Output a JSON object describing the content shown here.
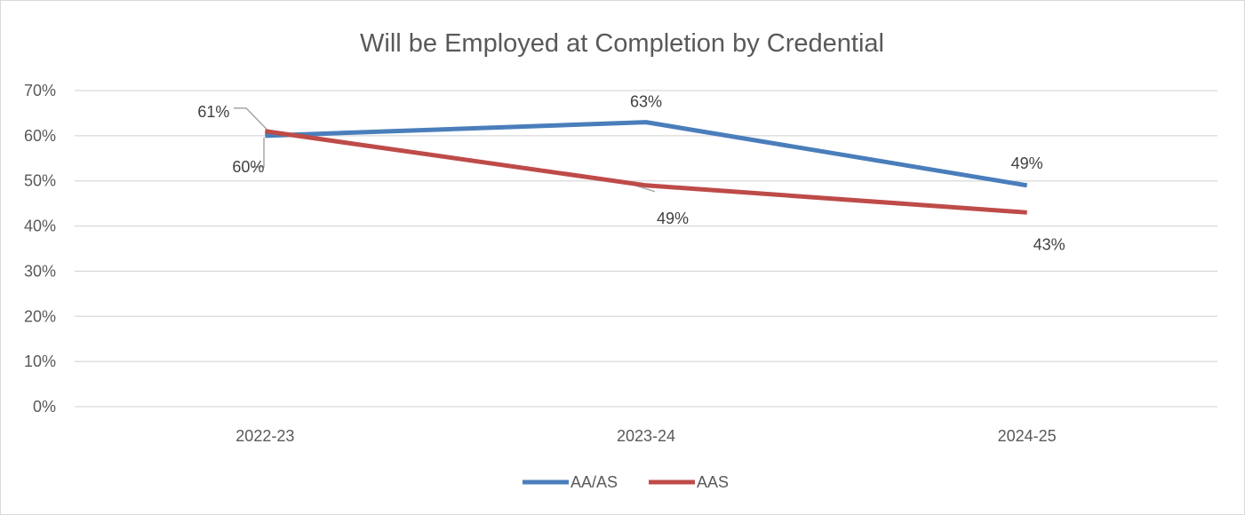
{
  "chart_data": {
    "type": "line",
    "title": "Will be Employed at Completion by Credential",
    "categories": [
      "2022-23",
      "2023-24",
      "2024-25"
    ],
    "y_ticks": [
      "0%",
      "10%",
      "20%",
      "30%",
      "40%",
      "50%",
      "60%",
      "70%"
    ],
    "ylim": [
      0,
      0.7
    ],
    "grid": true,
    "legend_position": "bottom",
    "series": [
      {
        "name": "AA/AS",
        "color": "#4a7ebb",
        "values": [
          0.6,
          0.63,
          0.49
        ],
        "labels": [
          "60%",
          "63%",
          "49%"
        ]
      },
      {
        "name": "AAS",
        "color": "#be4b48",
        "values": [
          0.61,
          0.49,
          0.43
        ],
        "labels": [
          "61%",
          "49%",
          "43%"
        ]
      }
    ]
  }
}
